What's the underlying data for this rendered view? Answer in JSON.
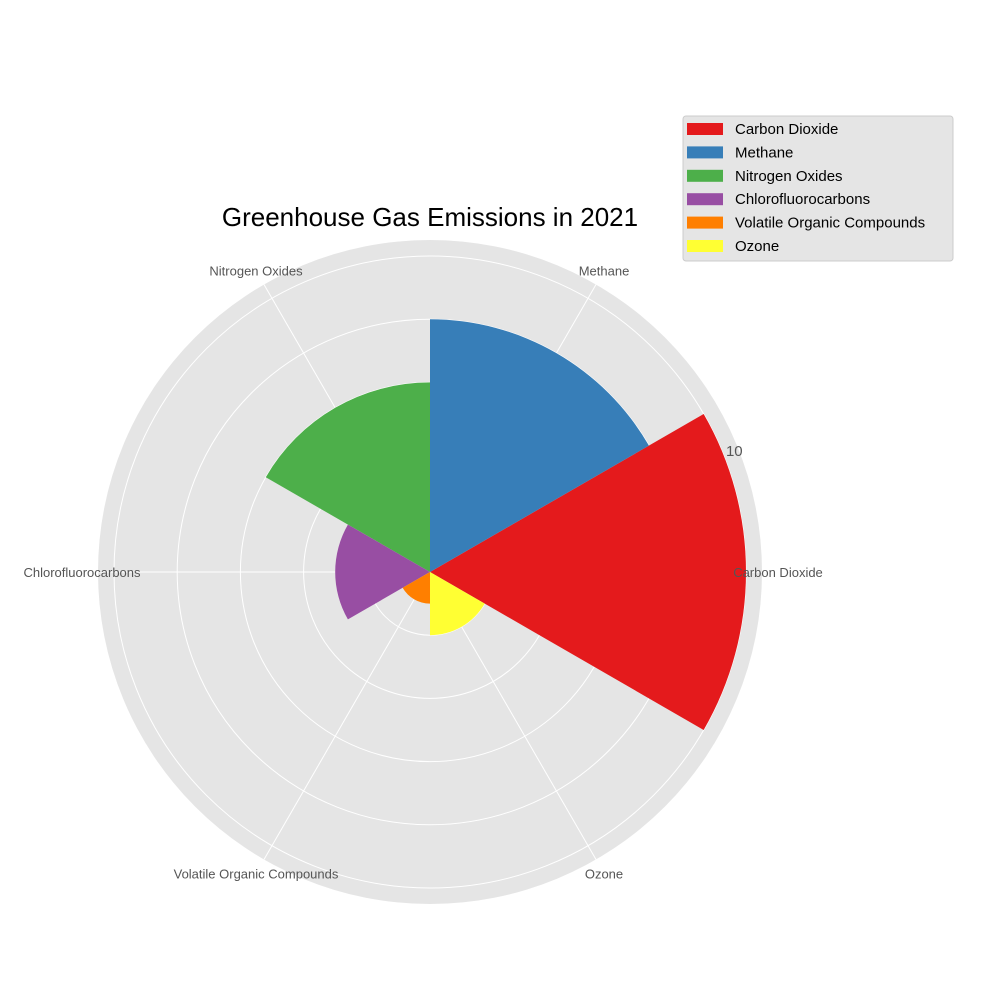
{
  "chart_data": {
    "type": "polar-bar",
    "title": "Greenhouse Gas Emissions in 2021",
    "categories": [
      "Carbon Dioxide",
      "Methane",
      "Nitrogen Oxides",
      "Chlorofluorocarbons",
      "Volatile Organic Compounds",
      "Ozone"
    ],
    "values": [
      10,
      8,
      6,
      3,
      1,
      2
    ],
    "colors": [
      "#e41a1c",
      "#377eb8",
      "#4daf4a",
      "#984ea3",
      "#ff7f00",
      "#ffff33"
    ],
    "tick_labels": [
      "10"
    ],
    "rlim": [
      0,
      10
    ],
    "grid": true,
    "legend_position": "top-right",
    "background_color": "#e5e5e5",
    "grid_color": "#ffffff"
  }
}
